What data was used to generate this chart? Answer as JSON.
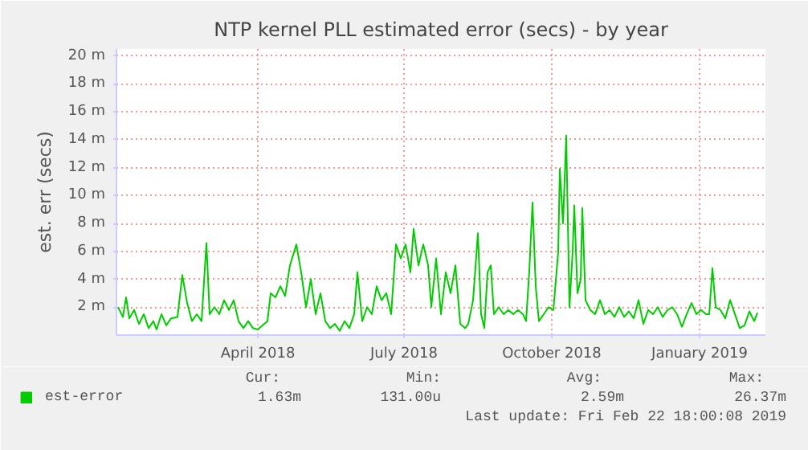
{
  "chart_data": {
    "type": "line",
    "title": "NTP kernel PLL estimated error (secs) - by year",
    "ylabel": "est. err (secs)",
    "x": [
      "2018-01-20",
      "2018-01-23",
      "2018-01-25",
      "2018-01-27",
      "2018-01-30",
      "2018-02-02",
      "2018-02-05",
      "2018-02-08",
      "2018-02-11",
      "2018-02-13",
      "2018-02-16",
      "2018-02-19",
      "2018-02-22",
      "2018-02-26",
      "2018-03-01",
      "2018-03-04",
      "2018-03-07",
      "2018-03-10",
      "2018-03-13",
      "2018-03-16",
      "2018-03-18",
      "2018-03-21",
      "2018-03-24",
      "2018-03-27",
      "2018-03-30",
      "2018-04-02",
      "2018-04-05",
      "2018-04-08",
      "2018-04-11",
      "2018-04-14",
      "2018-04-17",
      "2018-04-20",
      "2018-04-23",
      "2018-04-25",
      "2018-04-28",
      "2018-05-01",
      "2018-05-04",
      "2018-05-07",
      "2018-05-11",
      "2018-05-14",
      "2018-05-17",
      "2018-05-20",
      "2018-05-23",
      "2018-05-26",
      "2018-05-29",
      "2018-06-01",
      "2018-06-04",
      "2018-06-07",
      "2018-06-10",
      "2018-06-13",
      "2018-06-16",
      "2018-06-18",
      "2018-06-21",
      "2018-06-24",
      "2018-06-27",
      "2018-06-30",
      "2018-07-03",
      "2018-07-06",
      "2018-07-09",
      "2018-07-12",
      "2018-07-15",
      "2018-07-18",
      "2018-07-21",
      "2018-07-23",
      "2018-07-26",
      "2018-07-29",
      "2018-08-01",
      "2018-08-03",
      "2018-08-06",
      "2018-08-09",
      "2018-08-12",
      "2018-08-15",
      "2018-08-18",
      "2018-08-21",
      "2018-08-24",
      "2018-08-26",
      "2018-08-29",
      "2018-09-01",
      "2018-09-03",
      "2018-09-05",
      "2018-09-07",
      "2018-09-09",
      "2018-09-11",
      "2018-09-14",
      "2018-09-17",
      "2018-09-20",
      "2018-09-23",
      "2018-09-26",
      "2018-09-29",
      "2018-10-01",
      "2018-10-03",
      "2018-10-05",
      "2018-10-07",
      "2018-10-09",
      "2018-10-12",
      "2018-10-15",
      "2018-10-18",
      "2018-10-21",
      "2018-10-22",
      "2018-10-24",
      "2018-10-26",
      "2018-10-28",
      "2018-10-30",
      "2018-10-31",
      "2018-11-02",
      "2018-11-04",
      "2018-11-05",
      "2018-11-07",
      "2018-11-10",
      "2018-11-13",
      "2018-11-16",
      "2018-11-19",
      "2018-11-22",
      "2018-11-25",
      "2018-11-28",
      "2018-12-01",
      "2018-12-04",
      "2018-12-07",
      "2018-12-10",
      "2018-12-13",
      "2018-12-16",
      "2018-12-19",
      "2018-12-22",
      "2018-12-25",
      "2018-12-28",
      "2018-12-31",
      "2019-01-03",
      "2019-01-06",
      "2019-01-09",
      "2019-01-12",
      "2019-01-15",
      "2019-01-18",
      "2019-01-21",
      "2019-01-23",
      "2019-01-25",
      "2019-01-27",
      "2019-01-30",
      "2019-02-02",
      "2019-02-05",
      "2019-02-08",
      "2019-02-11",
      "2019-02-14",
      "2019-02-17",
      "2019-02-20",
      "2019-02-22"
    ],
    "series": [
      {
        "name": "est-error",
        "color": "#00cc00",
        "values": [
          2.0,
          1.3,
          2.7,
          1.2,
          1.8,
          0.8,
          1.5,
          0.5,
          1.0,
          0.4,
          1.5,
          0.7,
          1.2,
          1.3,
          4.3,
          2.3,
          1.0,
          1.5,
          1.0,
          6.6,
          1.5,
          2.0,
          1.5,
          2.5,
          1.8,
          2.5,
          1.0,
          0.5,
          1.0,
          0.5,
          0.4,
          0.7,
          1.0,
          3.0,
          2.7,
          3.5,
          2.8,
          5.0,
          6.5,
          4.5,
          2.0,
          4.0,
          1.5,
          3.0,
          1.0,
          0.5,
          0.8,
          0.3,
          1.0,
          0.5,
          1.5,
          4.5,
          1.0,
          2.0,
          1.5,
          3.5,
          2.5,
          3.0,
          1.5,
          6.5,
          5.5,
          6.5,
          4.5,
          7.6,
          5.0,
          6.5,
          5.0,
          2.0,
          5.5,
          1.5,
          4.5,
          3.0,
          5.0,
          0.8,
          0.5,
          0.8,
          2.5,
          7.3,
          1.5,
          0.5,
          4.5,
          5.0,
          1.5,
          2.0,
          1.5,
          1.8,
          1.5,
          1.8,
          1.5,
          1.0,
          4.6,
          9.5,
          3.5,
          1.0,
          1.5,
          2.0,
          1.8,
          6.0,
          11.9,
          8.0,
          14.3,
          2.0,
          6.0,
          9.3,
          3.0,
          4.0,
          9.1,
          2.5,
          1.8,
          1.5,
          2.5,
          1.5,
          1.8,
          1.3,
          2.0,
          1.3,
          1.7,
          1.2,
          2.5,
          0.8,
          1.8,
          1.5,
          2.0,
          1.3,
          1.8,
          2.0,
          1.5,
          0.6,
          1.5,
          2.3,
          1.5,
          1.8,
          1.5,
          1.5,
          4.8,
          2.0,
          1.8,
          1.2,
          2.5,
          1.5,
          0.5,
          0.7,
          1.7,
          1.0,
          1.6
        ]
      }
    ],
    "xlim": [
      "2018-01-19",
      "2019-02-27"
    ],
    "xticks": [
      {
        "value": "2018-04-17",
        "label": "April 2018"
      },
      {
        "value": "2018-07-17",
        "label": "July 2018"
      },
      {
        "value": "2018-10-17",
        "label": "October 2018"
      },
      {
        "value": "2019-01-17",
        "label": "January 2019"
      }
    ],
    "ylim": [
      0,
      20.5
    ],
    "yticks": [
      {
        "value": 2,
        "label": "2 m"
      },
      {
        "value": 4,
        "label": "4 m"
      },
      {
        "value": 6,
        "label": "6 m"
      },
      {
        "value": 8,
        "label": "8 m"
      },
      {
        "value": 10,
        "label": "10 m"
      },
      {
        "value": 12,
        "label": "12 m"
      },
      {
        "value": 14,
        "label": "14 m"
      },
      {
        "value": 16,
        "label": "16 m"
      },
      {
        "value": 18,
        "label": "18 m"
      },
      {
        "value": 20,
        "label": "20 m"
      }
    ],
    "grid": true,
    "legend": "bottom left",
    "annotations": [
      "Cur:",
      "Min:",
      "Avg:",
      "Max:",
      "1.63m",
      "131.00u",
      "2.59m",
      "26.37m",
      "Last update: Fri Feb 22 18:00:08 2019"
    ]
  }
}
